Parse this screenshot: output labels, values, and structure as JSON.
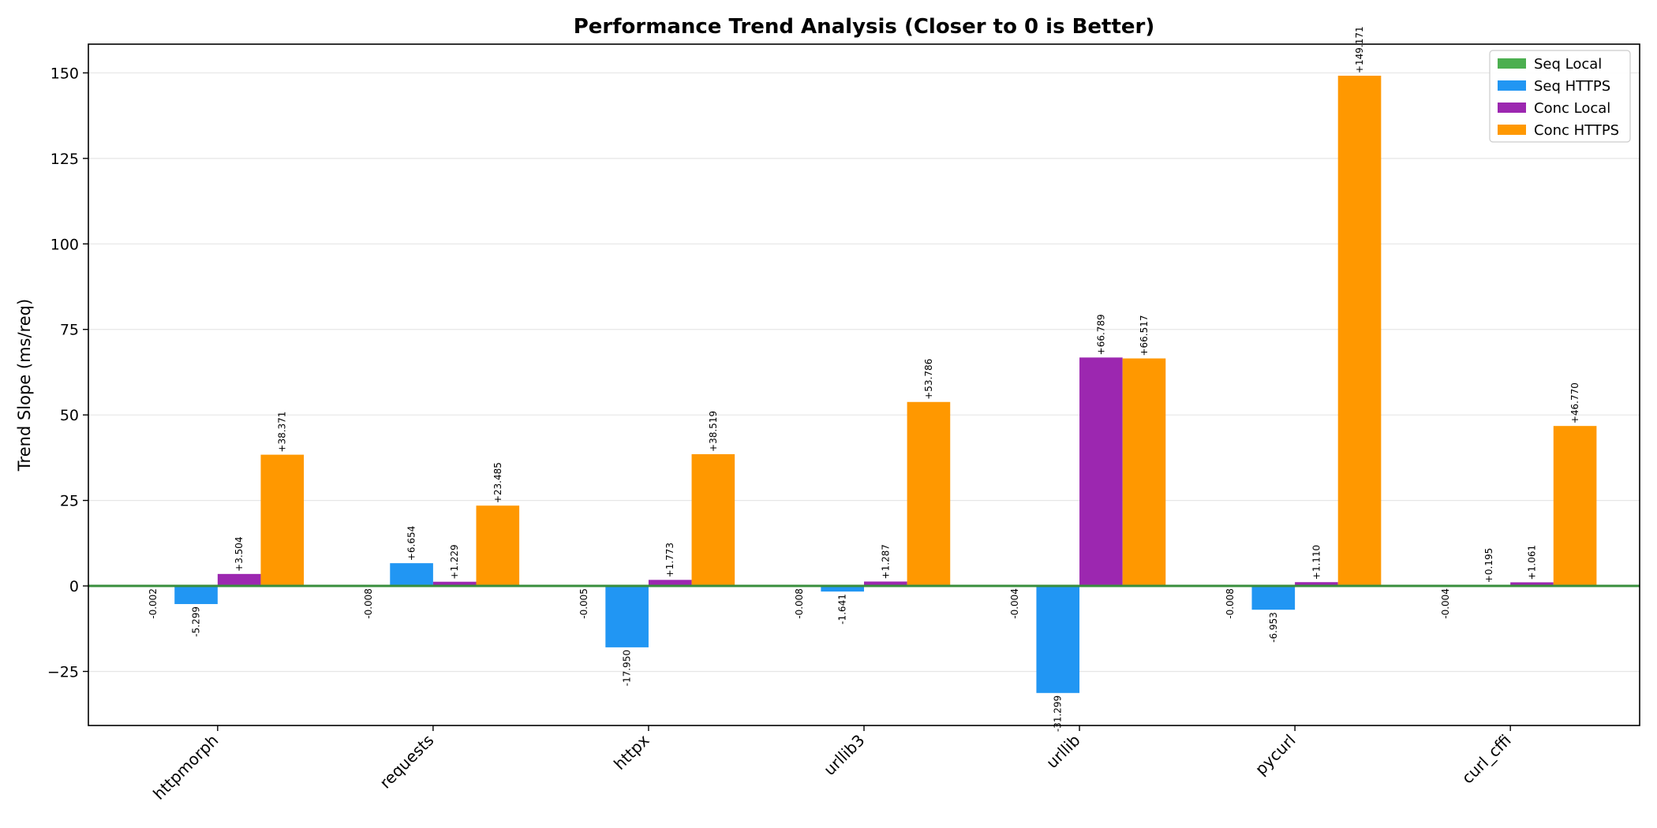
{
  "chart_data": {
    "type": "bar",
    "title": "Performance Trend Analysis (Closer to 0 is Better)",
    "xlabel": "",
    "ylabel": "Trend Slope (ms/req)",
    "ylim": [
      -40.8,
      158.4
    ],
    "yticks": [
      -25,
      0,
      25,
      50,
      75,
      100,
      125,
      150
    ],
    "ytick_labels": [
      "−25",
      "0",
      "25",
      "50",
      "75",
      "100",
      "125",
      "150"
    ],
    "categories": [
      "httpmorph",
      "requests",
      "httpx",
      "urllib3",
      "urllib",
      "pycurl",
      "curl_cffi"
    ],
    "series": [
      {
        "name": "Seq Local",
        "color": "#4caf50",
        "values": [
          -0.002,
          -0.008,
          -0.005,
          -0.008,
          -0.004,
          -0.008,
          -0.004
        ],
        "labels": [
          "-0.002",
          "-0.008",
          "-0.005",
          "-0.008",
          "-0.004",
          "-0.008",
          "-0.004"
        ]
      },
      {
        "name": "Seq HTTPS",
        "color": "#2196f3",
        "values": [
          -5.299,
          6.654,
          -17.95,
          -1.641,
          -31.299,
          -6.953,
          0.195
        ],
        "labels": [
          "-5.299",
          "+6.654",
          "-17.950",
          "-1.641",
          "-31.299",
          "-6.953",
          "+0.195"
        ]
      },
      {
        "name": "Conc Local",
        "color": "#9c27b0",
        "values": [
          3.504,
          1.229,
          1.773,
          1.287,
          66.789,
          1.11,
          1.061
        ],
        "labels": [
          "+3.504",
          "+1.229",
          "+1.773",
          "+1.287",
          "+66.789",
          "+1.110",
          "+1.061"
        ]
      },
      {
        "name": "Conc HTTPS",
        "color": "#ff9800",
        "values": [
          38.371,
          23.485,
          38.519,
          53.786,
          66.517,
          149.171,
          46.77
        ],
        "labels": [
          "+38.371",
          "+23.485",
          "+38.519",
          "+53.786",
          "+66.517",
          "+149.171",
          "+46.770"
        ]
      }
    ],
    "zero_line_color": "#388e3c",
    "grid": true,
    "legend_position": "top-right"
  }
}
